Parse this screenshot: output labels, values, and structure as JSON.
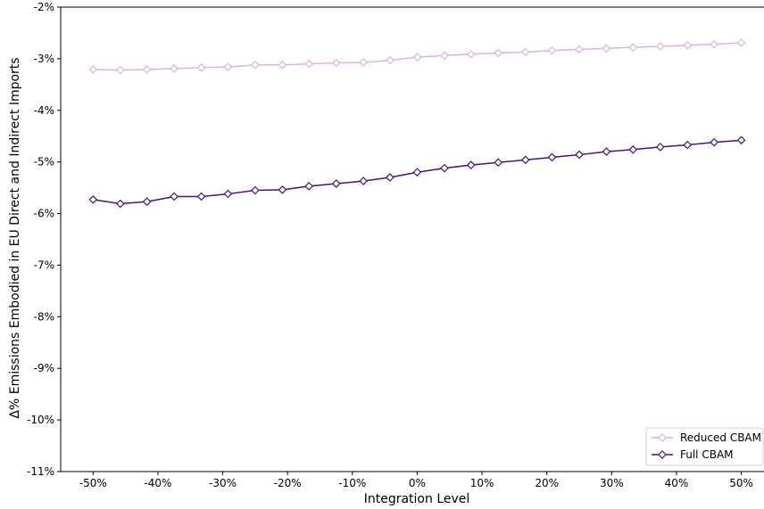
{
  "chart_data": {
    "type": "line",
    "xlabel": "Integration Level",
    "ylabel": "Δ% Emissions Embodied in EU Direct and Indirect Imports",
    "xlim": [
      -55,
      53.5
    ],
    "ylim": [
      -11,
      -2
    ],
    "x_ticks": [
      -50,
      -40,
      -30,
      -20,
      -10,
      0,
      10,
      20,
      30,
      40,
      50
    ],
    "x_tick_labels": [
      "-50%",
      "-40%",
      "-30%",
      "-20%",
      "-10%",
      "0%",
      "10%",
      "20%",
      "30%",
      "40%",
      "50%"
    ],
    "y_ticks": [
      -2,
      -3,
      -4,
      -5,
      -6,
      -7,
      -8,
      -9,
      -10,
      -11
    ],
    "y_tick_labels": [
      "-2%",
      "-3%",
      "-4%",
      "-5%",
      "-6%",
      "-7%",
      "-8%",
      "-9%",
      "-10%",
      "-11%"
    ],
    "grid": false,
    "legend_position": "bottom-right",
    "x": [
      -50,
      -45.8,
      -41.7,
      -37.5,
      -33.3,
      -29.2,
      -25,
      -20.8,
      -16.7,
      -12.5,
      -8.3,
      -4.2,
      0,
      4.2,
      8.3,
      12.5,
      16.7,
      20.8,
      25,
      29.2,
      33.3,
      37.5,
      41.7,
      45.8,
      50
    ],
    "series": [
      {
        "name": "Reduced CBAM",
        "color": "#d6b4e0",
        "marker": "diamond",
        "values": [
          -3.21,
          -3.22,
          -3.21,
          -3.19,
          -3.17,
          -3.16,
          -3.12,
          -3.12,
          -3.1,
          -3.08,
          -3.07,
          -3.03,
          -2.97,
          -2.94,
          -2.91,
          -2.89,
          -2.87,
          -2.84,
          -2.82,
          -2.8,
          -2.78,
          -2.76,
          -2.74,
          -2.72,
          -2.69
        ]
      },
      {
        "name": "Full CBAM",
        "color": "#4b0f7a",
        "marker": "diamond",
        "values": [
          -5.73,
          -5.81,
          -5.77,
          -5.67,
          -5.67,
          -5.62,
          -5.55,
          -5.54,
          -5.47,
          -5.42,
          -5.37,
          -5.3,
          -5.2,
          -5.12,
          -5.06,
          -5.01,
          -4.96,
          -4.91,
          -4.86,
          -4.8,
          -4.76,
          -4.71,
          -4.67,
          -4.62,
          -4.58
        ]
      }
    ]
  }
}
